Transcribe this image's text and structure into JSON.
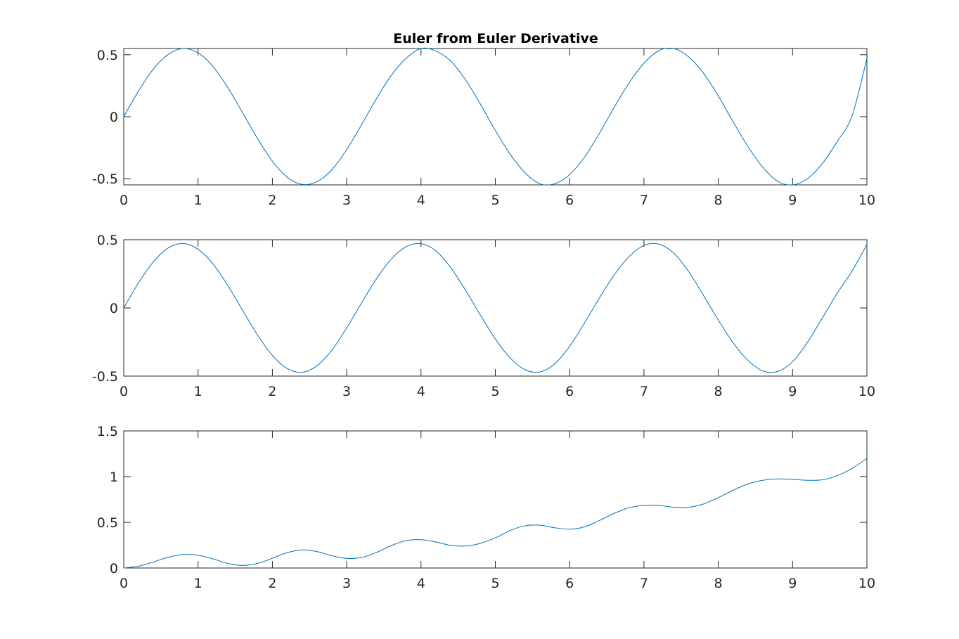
{
  "chart_data": [
    {
      "type": "line",
      "title": "Euler from Euler Derivative",
      "xlabel": "",
      "ylabel": "",
      "xlim": [
        0,
        10
      ],
      "ylim": [
        -0.55,
        0.55
      ],
      "xticks": [
        0,
        1,
        2,
        3,
        4,
        5,
        6,
        7,
        8,
        9,
        10
      ],
      "xtick_labels": [
        "0",
        "1",
        "2",
        "3",
        "4",
        "5",
        "6",
        "7",
        "8",
        "9",
        "10"
      ],
      "yticks": [
        -0.5,
        0,
        0.5
      ],
      "ytick_labels": [
        "-0.5",
        "0",
        "0.5"
      ],
      "grid": false,
      "color": "#0072bd",
      "series": [
        {
          "x": [
            0,
            0.2,
            0.4,
            0.6,
            0.8,
            1.0,
            1.2,
            1.4,
            1.6,
            1.8,
            2.0,
            2.2,
            2.4,
            2.6,
            2.8,
            3.0,
            3.2,
            3.4,
            3.6,
            3.8,
            4.0,
            4.2,
            4.4,
            4.6,
            4.8,
            5.0,
            5.2,
            5.4,
            5.6,
            5.8,
            6.0,
            6.2,
            6.4,
            6.6,
            6.8,
            7.0,
            7.2,
            7.4,
            7.6,
            7.8,
            8.0,
            8.2,
            8.4,
            8.6,
            8.8,
            9.0,
            9.2,
            9.4,
            9.6,
            9.8,
            10.0
          ],
          "y": [
            0.0,
            0.208,
            0.385,
            0.503,
            0.55,
            0.515,
            0.406,
            0.235,
            0.031,
            -0.176,
            -0.359,
            -0.488,
            -0.546,
            -0.524,
            -0.428,
            -0.266,
            -0.065,
            0.145,
            0.332,
            0.471,
            0.55,
            0.53,
            0.448,
            0.297,
            0.101,
            -0.111,
            -0.303,
            -0.452,
            -0.541,
            -0.541,
            -0.467,
            -0.326,
            -0.135,
            0.076,
            0.273,
            0.431,
            0.533,
            0.55,
            0.483,
            0.352,
            0.168,
            -0.042,
            -0.241,
            -0.408,
            -0.521,
            -0.55,
            -0.499,
            -0.378,
            -0.201,
            0.007,
            0.47
          ]
        }
      ]
    },
    {
      "type": "line",
      "title": "",
      "xlabel": "",
      "ylabel": "",
      "xlim": [
        0,
        10
      ],
      "ylim": [
        -0.5,
        0.5
      ],
      "xticks": [
        0,
        1,
        2,
        3,
        4,
        5,
        6,
        7,
        8,
        9,
        10
      ],
      "xtick_labels": [
        "0",
        "1",
        "2",
        "3",
        "4",
        "5",
        "6",
        "7",
        "8",
        "9",
        "10"
      ],
      "yticks": [
        -0.5,
        0,
        0.5
      ],
      "ytick_labels": [
        "-0.5",
        "0",
        "0.5"
      ],
      "grid": false,
      "color": "#0072bd",
      "series": [
        {
          "x": [
            0,
            0.2,
            0.4,
            0.6,
            0.8,
            1.0,
            1.2,
            1.4,
            1.6,
            1.8,
            2.0,
            2.2,
            2.4,
            2.6,
            2.8,
            3.0,
            3.2,
            3.4,
            3.6,
            3.8,
            4.0,
            4.2,
            4.4,
            4.6,
            4.8,
            5.0,
            5.2,
            5.4,
            5.6,
            5.8,
            6.0,
            6.2,
            6.4,
            6.6,
            6.8,
            7.0,
            7.2,
            7.4,
            7.6,
            7.8,
            8.0,
            8.2,
            8.4,
            8.6,
            8.8,
            9.0,
            9.2,
            9.4,
            9.6,
            9.8,
            10.0
          ],
          "y": [
            0.0,
            0.185,
            0.339,
            0.44,
            0.472,
            0.43,
            0.323,
            0.165,
            -0.018,
            -0.198,
            -0.348,
            -0.445,
            -0.472,
            -0.425,
            -0.31,
            -0.147,
            0.036,
            0.213,
            0.358,
            0.449,
            0.471,
            0.418,
            0.295,
            0.129,
            -0.054,
            -0.227,
            -0.367,
            -0.453,
            -0.47,
            -0.41,
            -0.282,
            -0.111,
            0.072,
            0.242,
            0.376,
            0.458,
            0.468,
            0.402,
            0.268,
            0.093,
            -0.089,
            -0.256,
            -0.385,
            -0.462,
            -0.466,
            -0.394,
            -0.253,
            -0.074,
            0.107,
            0.27,
            0.465
          ]
        }
      ]
    },
    {
      "type": "line",
      "title": "",
      "xlabel": "",
      "ylabel": "",
      "xlim": [
        0,
        10
      ],
      "ylim": [
        0,
        1.5
      ],
      "xticks": [
        0,
        1,
        2,
        3,
        4,
        5,
        6,
        7,
        8,
        9,
        10
      ],
      "xtick_labels": [
        "0",
        "1",
        "2",
        "3",
        "4",
        "5",
        "6",
        "7",
        "8",
        "9",
        "10"
      ],
      "yticks": [
        0,
        0.5,
        1,
        1.5
      ],
      "ytick_labels": [
        "0",
        "0.5",
        "1",
        "1.5"
      ],
      "grid": false,
      "color": "#0072bd",
      "series": [
        {
          "x": [
            0,
            0.2,
            0.4,
            0.6,
            0.8,
            1.0,
            1.2,
            1.4,
            1.6,
            1.8,
            2.0,
            2.2,
            2.4,
            2.6,
            2.8,
            3.0,
            3.2,
            3.4,
            3.6,
            3.8,
            4.0,
            4.2,
            4.4,
            4.6,
            4.8,
            5.0,
            5.2,
            5.4,
            5.6,
            5.8,
            6.0,
            6.2,
            6.4,
            6.6,
            6.8,
            7.0,
            7.2,
            7.4,
            7.6,
            7.8,
            8.0,
            8.2,
            8.4,
            8.6,
            8.8,
            9.0,
            9.2,
            9.4,
            9.6,
            9.8,
            10.0
          ],
          "y": [
            0.0,
            0.02,
            0.066,
            0.118,
            0.148,
            0.14,
            0.1,
            0.05,
            0.028,
            0.05,
            0.107,
            0.168,
            0.198,
            0.18,
            0.135,
            0.105,
            0.115,
            0.17,
            0.245,
            0.3,
            0.31,
            0.285,
            0.248,
            0.24,
            0.27,
            0.33,
            0.41,
            0.462,
            0.468,
            0.44,
            0.425,
            0.45,
            0.52,
            0.598,
            0.66,
            0.685,
            0.685,
            0.665,
            0.665,
            0.7,
            0.77,
            0.85,
            0.92,
            0.96,
            0.975,
            0.97,
            0.96,
            0.965,
            1.01,
            1.09,
            1.2
          ]
        }
      ]
    }
  ]
}
